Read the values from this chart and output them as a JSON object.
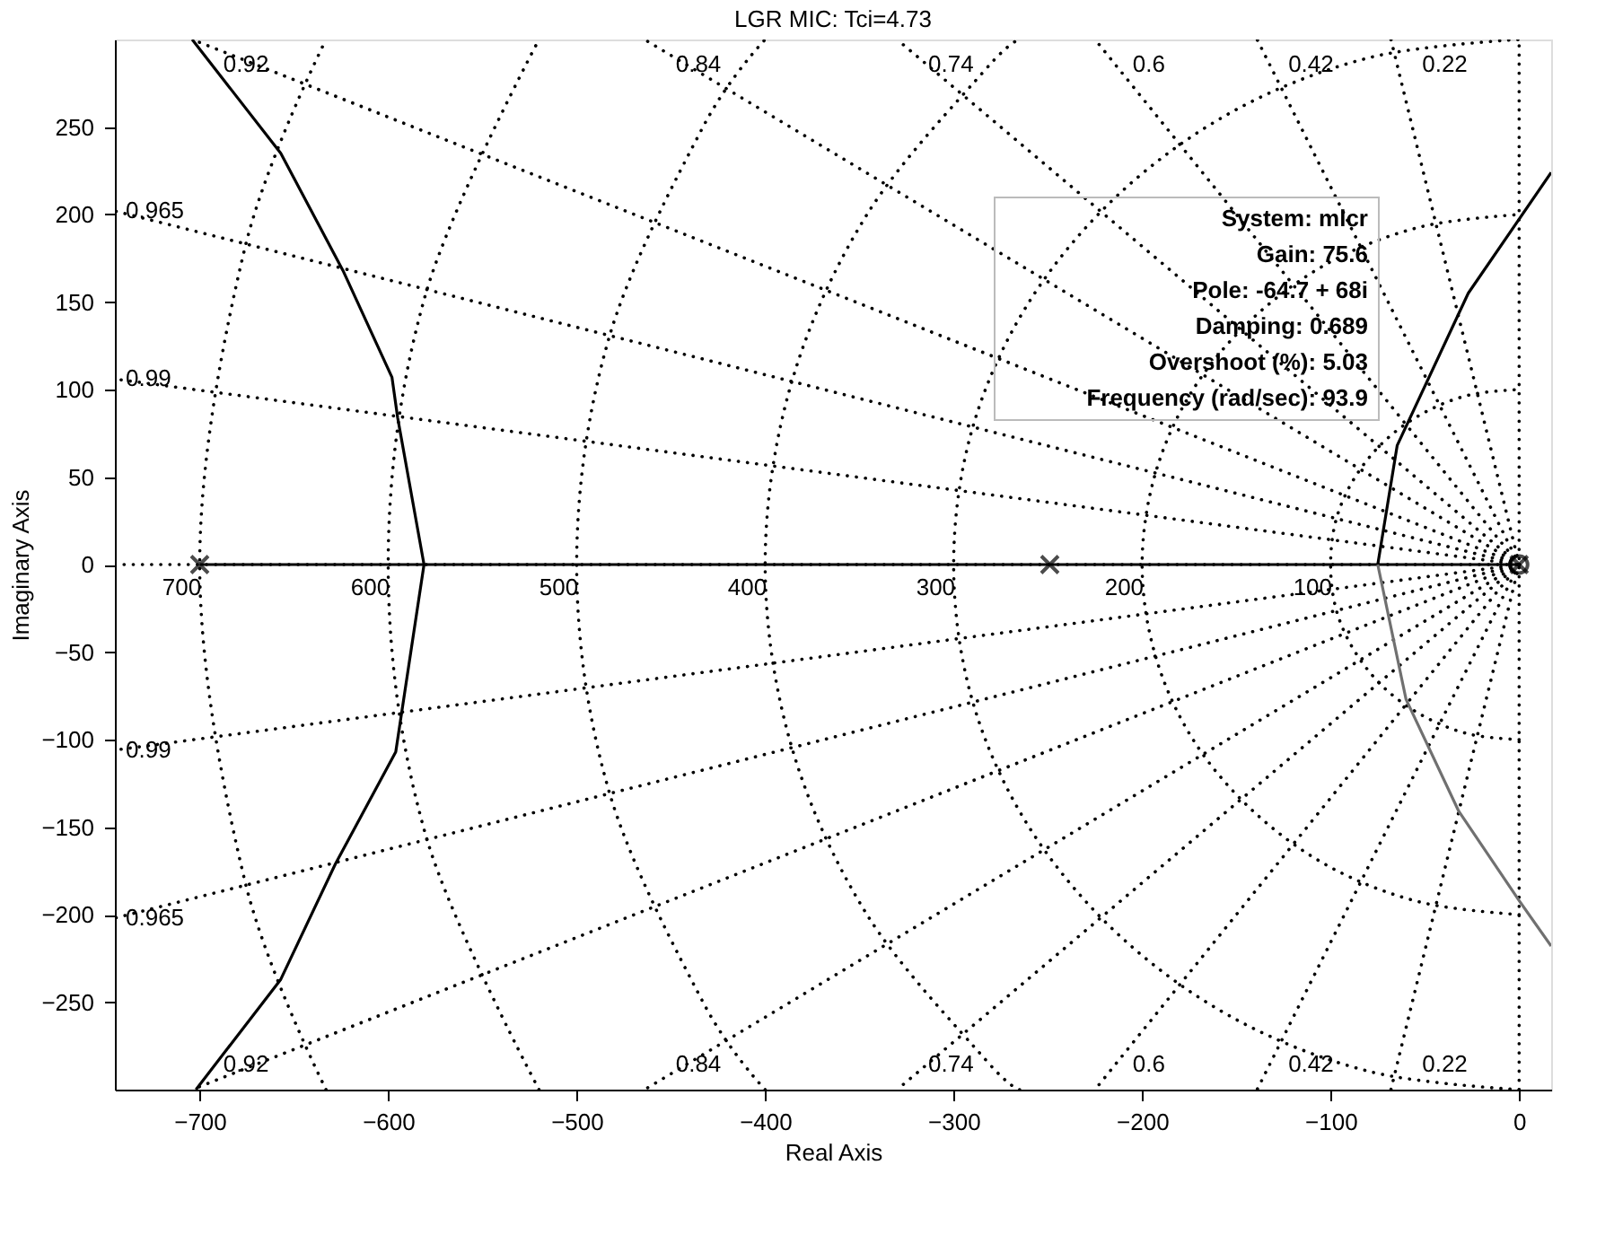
{
  "chart_data": {
    "type": "line",
    "title": "LGR MIC: Tci=4.73",
    "xlabel": "Real Axis",
    "ylabel": "Imaginary Axis",
    "xlim": [
      -745,
      17
    ],
    "ylim": [
      -300,
      300
    ],
    "xticks": [
      -700,
      -600,
      -500,
      -400,
      -300,
      -200,
      -100,
      0
    ],
    "yticks": [
      -250,
      -200,
      -150,
      -100,
      -50,
      0,
      50,
      100,
      150,
      200,
      250
    ],
    "grid": false,
    "series": [
      {
        "color": "#000000",
        "line_style": "dotted",
        "x": [
          -745,
          0
        ],
        "values": [
          0,
          0
        ]
      },
      {
        "color": "#000000",
        "line_style": "dotted",
        "x": [
          0,
          0
        ],
        "values": [
          -300,
          300
        ]
      },
      {
        "color": "#000000",
        "line_style": "dotted",
        "x": [
          0,
          -68
        ],
        "values": [
          0,
          300
        ]
      },
      {
        "color": "#000000",
        "line_style": "dotted",
        "x": [
          0,
          -139
        ],
        "values": [
          0,
          300
        ]
      },
      {
        "color": "#000000",
        "line_style": "dotted",
        "x": [
          0,
          -225
        ],
        "values": [
          0,
          300
        ]
      },
      {
        "color": "#000000",
        "line_style": "dotted",
        "x": [
          0,
          -330
        ],
        "values": [
          0,
          300
        ]
      },
      {
        "color": "#000000",
        "line_style": "dotted",
        "x": [
          0,
          -464
        ],
        "values": [
          0,
          300
        ]
      },
      {
        "color": "#000000",
        "line_style": "dotted",
        "x": [
          0,
          -704
        ],
        "values": [
          0,
          300
        ]
      },
      {
        "color": "#000000",
        "line_style": "dotted",
        "x": [
          0,
          -745
        ],
        "values": [
          0,
          202
        ]
      },
      {
        "color": "#000000",
        "line_style": "dotted",
        "x": [
          0,
          -745
        ],
        "values": [
          0,
          106
        ]
      },
      {
        "color": "#000000",
        "line_style": "dotted",
        "x": [
          0,
          -68
        ],
        "values": [
          0,
          -300
        ]
      },
      {
        "color": "#000000",
        "line_style": "dotted",
        "x": [
          0,
          -139
        ],
        "values": [
          0,
          -300
        ]
      },
      {
        "color": "#000000",
        "line_style": "dotted",
        "x": [
          0,
          -225
        ],
        "values": [
          0,
          -300
        ]
      },
      {
        "color": "#000000",
        "line_style": "dotted",
        "x": [
          0,
          -330
        ],
        "values": [
          0,
          -300
        ]
      },
      {
        "color": "#000000",
        "line_style": "dotted",
        "x": [
          0,
          -464
        ],
        "values": [
          0,
          -300
        ]
      },
      {
        "color": "#000000",
        "line_style": "dotted",
        "x": [
          0,
          -704
        ],
        "values": [
          0,
          -300
        ]
      },
      {
        "color": "#000000",
        "line_style": "dotted",
        "x": [
          0,
          -745
        ],
        "values": [
          0,
          -202
        ]
      },
      {
        "color": "#000000",
        "line_style": "dotted",
        "x": [
          0,
          -745
        ],
        "values": [
          0,
          -106
        ]
      },
      {
        "color": "#000000",
        "line_style": "dotted",
        "x": [
          0,
          -26,
          -50,
          -71,
          -87,
          -97,
          -100,
          -97,
          -87,
          -71,
          -50,
          -26,
          0
        ],
        "values": [
          -100,
          -97,
          -87,
          -71,
          -50,
          -26,
          0,
          26,
          50,
          71,
          87,
          97,
          100
        ]
      },
      {
        "color": "#000000",
        "line_style": "dotted",
        "x": [
          0,
          -52,
          -100,
          -141,
          -173,
          -193,
          -200,
          -193,
          -173,
          -141,
          -100,
          -52,
          0
        ],
        "values": [
          -200,
          -193,
          -173,
          -141,
          -100,
          -52,
          0,
          52,
          100,
          141,
          173,
          193,
          200
        ]
      },
      {
        "color": "#000000",
        "line_style": "dotted",
        "x": [
          0,
          -78,
          -150,
          -212,
          -260,
          -290,
          -300,
          -290,
          -260,
          -212,
          -150,
          -78,
          0
        ],
        "values": [
          -300,
          -290,
          -260,
          -212,
          -150,
          -78,
          0,
          78,
          150,
          212,
          260,
          290,
          300
        ]
      },
      {
        "color": "#000000",
        "line_style": "dotted",
        "x": [
          -265,
          -283,
          -346,
          -386,
          -400,
          -386,
          -346,
          -283,
          -265
        ],
        "values": [
          -300,
          -283,
          -200,
          -104,
          0,
          104,
          200,
          283,
          300
        ]
      },
      {
        "color": "#000000",
        "line_style": "dotted",
        "x": [
          -400,
          -433,
          -483,
          -500,
          -483,
          -433,
          -400
        ],
        "values": [
          -300,
          -250,
          -129,
          0,
          129,
          250,
          300
        ]
      },
      {
        "color": "#000000",
        "line_style": "dotted",
        "x": [
          -520,
          -580,
          -600,
          -580,
          -520
        ],
        "values": [
          -300,
          -155,
          0,
          155,
          300
        ]
      },
      {
        "color": "#000000",
        "line_style": "dotted",
        "x": [
          -633,
          -676,
          -700,
          -676,
          -633
        ],
        "values": [
          -300,
          -181,
          0,
          181,
          300
        ]
      },
      {
        "color": "#000000",
        "line_style": "solid",
        "x": [
          -700,
          0
        ],
        "values": [
          0,
          0
        ]
      },
      {
        "color": "#000000",
        "line_style": "solid",
        "x": [
          -704,
          -657,
          -624,
          -598,
          -595,
          -581,
          -596,
          -628,
          -657,
          -702
        ],
        "values": [
          300,
          235,
          168,
          107,
          84,
          0,
          -107,
          -171,
          -237,
          -300
        ]
      },
      {
        "color": "#000000",
        "line_style": "solid",
        "x": [
          -75,
          -64.7,
          -27,
          17
        ],
        "values": [
          0,
          68,
          155,
          224
        ]
      },
      {
        "color": "#707070",
        "line_style": "solid",
        "x": [
          -75,
          -60,
          -32,
          0,
          17
        ],
        "values": [
          0,
          -77,
          -141,
          -192,
          -218
        ]
      },
      {
        "type": "scatter",
        "color": "#000000",
        "marker": "cross",
        "x": [
          -700,
          -249,
          0
        ],
        "values": [
          0,
          0,
          0
        ]
      },
      {
        "type": "scatter",
        "color": "#000000",
        "marker": "circle",
        "x": [
          0
        ],
        "values": [
          0
        ]
      }
    ],
    "annotations": [
      "System: mlcr",
      "Gain: 75.6",
      "Pole: -64.7 + 68i",
      "Damping: 0.689",
      "Overshoot (%): 5.03",
      "Frequency (rad/sec): 93.9",
      {
        "text": "0.92",
        "x": -704,
        "y": 300
      },
      {
        "text": "0.84",
        "x": -464,
        "y": 300
      },
      {
        "text": "0.74",
        "x": -330,
        "y": 300
      },
      {
        "text": "0.6",
        "x": -225,
        "y": 300
      },
      {
        "text": "0.42",
        "x": -139,
        "y": 300
      },
      {
        "text": "0.22",
        "x": -68,
        "y": 300
      },
      {
        "text": "0.965",
        "x": -745,
        "y": 202
      },
      {
        "text": "0.99",
        "x": -745,
        "y": 106
      },
      {
        "text": "0.99",
        "x": -745,
        "y": -106
      },
      {
        "text": "0.965",
        "x": -745,
        "y": -202
      },
      {
        "text": "0.92",
        "x": -704,
        "y": -300
      },
      {
        "text": "0.84",
        "x": -464,
        "y": -300
      },
      {
        "text": "0.74",
        "x": -330,
        "y": -300
      },
      {
        "text": "0.6",
        "x": -225,
        "y": -300
      },
      {
        "text": "0.42",
        "x": -139,
        "y": -300
      },
      {
        "text": "0.22",
        "x": -68,
        "y": -300
      },
      {
        "text": "700",
        "x": -700,
        "y": 0
      },
      {
        "text": "600",
        "x": -600,
        "y": 0
      },
      {
        "text": "500",
        "x": -500,
        "y": 0
      },
      {
        "text": "400",
        "x": -400,
        "y": 0
      },
      {
        "text": "300",
        "x": -300,
        "y": 0
      },
      {
        "text": "200",
        "x": -200,
        "y": 0
      },
      {
        "text": "100",
        "x": -100,
        "y": 0
      }
    ]
  }
}
